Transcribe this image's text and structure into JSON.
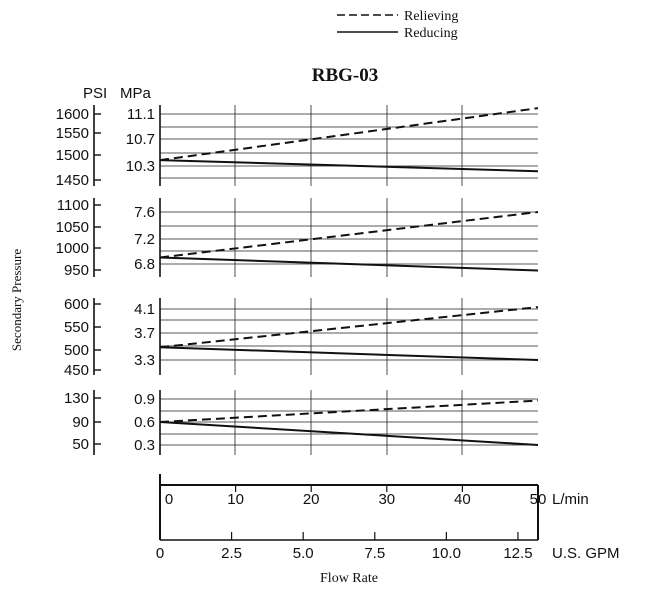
{
  "chart_data": {
    "type": "line",
    "title": "RBG-03",
    "ylabel": "Secondary Pressure",
    "xlabel": "Flow Rate",
    "unit_psi": "PSI",
    "unit_mpa": "MPa",
    "legend": {
      "placement": "top-right",
      "entries": [
        {
          "name": "Relieving",
          "style": "dashed"
        },
        {
          "name": "Reducing",
          "style": "solid"
        }
      ]
    },
    "x_axes": {
      "lmin": {
        "unit": "L/min",
        "range": [
          0,
          50
        ],
        "ticks": [
          "0",
          "10",
          "20",
          "30",
          "40",
          "50"
        ]
      },
      "gpm": {
        "unit": "U.S. GPM",
        "range": [
          0,
          13.2
        ],
        "ticks": [
          "0",
          "2.5",
          "5.0",
          "7.5",
          "10.0",
          "12.5"
        ]
      }
    },
    "x": [
      0,
      50
    ],
    "panels": [
      {
        "psi_ticks": [
          "1600",
          "1550",
          "1500",
          "1450"
        ],
        "mpa_ticks": [
          "11.1",
          "10.7",
          "10.3"
        ],
        "mpa_range": [
          10.0,
          11.2
        ],
        "series": [
          {
            "name": "Relieving",
            "values": [
              10.39,
              11.19
            ]
          },
          {
            "name": "Reducing",
            "values": [
              10.39,
              10.22
            ]
          }
        ]
      },
      {
        "psi_ticks": [
          "1100",
          "1050",
          "1000",
          "950"
        ],
        "mpa_ticks": [
          "7.6",
          "7.2",
          "6.8"
        ],
        "mpa_range": [
          6.5,
          7.7
        ],
        "series": [
          {
            "name": "Relieving",
            "values": [
              6.9,
              7.6
            ]
          },
          {
            "name": "Reducing",
            "values": [
              6.9,
              6.7
            ]
          }
        ]
      },
      {
        "psi_ticks": [
          "600",
          "550",
          "500",
          "450"
        ],
        "mpa_ticks": [
          "4.1",
          "3.7",
          "3.3"
        ],
        "mpa_range": [
          3.0,
          4.2
        ],
        "series": [
          {
            "name": "Relieving",
            "values": [
              3.5,
              4.13
            ]
          },
          {
            "name": "Reducing",
            "values": [
              3.5,
              3.3
            ]
          }
        ]
      },
      {
        "psi_ticks": [
          "130",
          "90",
          "50"
        ],
        "mpa_ticks": [
          "0.9",
          "0.6",
          "0.3"
        ],
        "mpa_range": [
          0.2,
          0.95
        ],
        "series": [
          {
            "name": "Relieving",
            "values": [
              0.6,
              0.88
            ]
          },
          {
            "name": "Reducing",
            "values": [
              0.6,
              0.3
            ]
          }
        ]
      }
    ]
  }
}
